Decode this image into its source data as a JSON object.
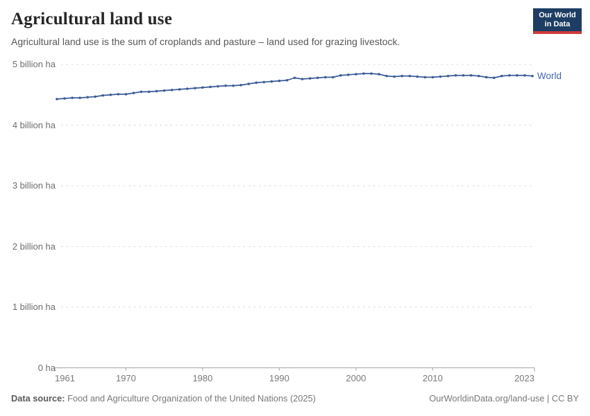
{
  "header": {
    "title": "Agricultural land use",
    "subtitle": "Agricultural land use is the sum of croplands and pasture – land used for grazing livestock.",
    "logo": {
      "line1": "Our World",
      "line2": "in Data",
      "bg_color": "#1d3d63",
      "stripe_color": "#cf3b3b"
    }
  },
  "chart_data": {
    "type": "line",
    "title": "Agricultural land use",
    "unit": "billion ha",
    "xlim": [
      1961,
      2023
    ],
    "ylim": [
      0,
      5
    ],
    "grid": "horizontal-dashed",
    "legend_position": "end-of-line",
    "x_ticks": [
      1961,
      1970,
      1980,
      1990,
      2000,
      2010,
      2023
    ],
    "y_ticks": [
      {
        "value": 0,
        "label": "0 ha"
      },
      {
        "value": 1,
        "label": "1 billion ha"
      },
      {
        "value": 2,
        "label": "2 billion ha"
      },
      {
        "value": 3,
        "label": "3 billion ha"
      },
      {
        "value": 4,
        "label": "4 billion ha"
      },
      {
        "value": 5,
        "label": "5 billion ha"
      }
    ],
    "series": [
      {
        "name": "World",
        "start_year": 1961,
        "step_years": 1,
        "values": [
          4.43,
          4.44,
          4.45,
          4.45,
          4.46,
          4.47,
          4.49,
          4.5,
          4.51,
          4.51,
          4.53,
          4.55,
          4.55,
          4.56,
          4.57,
          4.58,
          4.59,
          4.6,
          4.61,
          4.62,
          4.63,
          4.64,
          4.65,
          4.65,
          4.66,
          4.68,
          4.7,
          4.71,
          4.72,
          4.73,
          4.74,
          4.78,
          4.76,
          4.77,
          4.78,
          4.79,
          4.79,
          4.82,
          4.83,
          4.84,
          4.85,
          4.85,
          4.84,
          4.81,
          4.8,
          4.81,
          4.81,
          4.8,
          4.79,
          4.79,
          4.8,
          4.81,
          4.82,
          4.82,
          4.82,
          4.81,
          4.79,
          4.78,
          4.81,
          4.82,
          4.82,
          4.82,
          4.81
        ],
        "color": "#3a5a96",
        "label_color": "#4467aa"
      }
    ],
    "colors": {
      "gridline": "#d9d9d9",
      "axis": "#a6a6a6"
    }
  },
  "footer": {
    "source_label": "Data source:",
    "source_text": "Food and Agriculture Organization of the United Nations (2025)",
    "credit": "OurWorldinData.org/land-use | CC BY"
  }
}
